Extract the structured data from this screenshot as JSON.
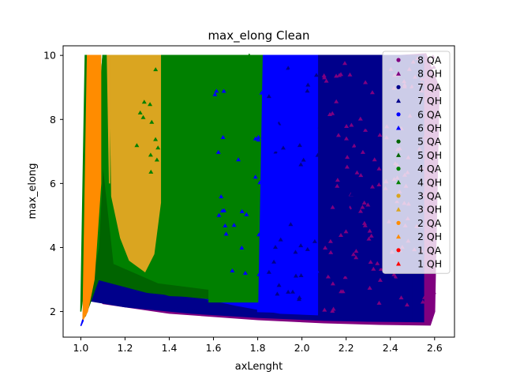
{
  "chart_data": {
    "type": "scatter",
    "title": "max_elong Clean",
    "xlabel": "axLenght",
    "ylabel": "max_elong",
    "xlim": [
      0.92,
      2.69
    ],
    "ylim": [
      1.2,
      10.3
    ],
    "xticks": [
      "1.0",
      "1.2",
      "1.4",
      "1.6",
      "1.8",
      "2.0",
      "2.2",
      "2.4",
      "2.6"
    ],
    "yticks": [
      "2",
      "4",
      "6",
      "8",
      "10"
    ],
    "grid": false,
    "legend_position": "upper-right",
    "series": [
      {
        "name": "8 QA",
        "marker": "circle",
        "color": "#800080",
        "region": [
          [
            1.02,
            1.95
          ],
          [
            1.04,
            2.75
          ],
          [
            1.1,
            2.25
          ],
          [
            1.4,
            1.95
          ],
          [
            1.8,
            1.75
          ],
          [
            2.1,
            1.65
          ],
          [
            2.35,
            1.6
          ],
          [
            2.58,
            1.58
          ],
          [
            2.6,
            2.0
          ],
          [
            2.6,
            9.0
          ],
          [
            2.56,
            10.0
          ],
          [
            2.45,
            10.0
          ],
          [
            2.45,
            2.5
          ],
          [
            2.0,
            2.4
          ],
          [
            1.5,
            2.3
          ],
          [
            1.1,
            2.6
          ],
          [
            1.05,
            3.0
          ]
        ]
      },
      {
        "name": "8 QH",
        "marker": "triangle",
        "color": "#800080",
        "region": [
          [
            2.5,
            1.9
          ],
          [
            2.6,
            2.1
          ],
          [
            2.62,
            9.0
          ],
          [
            2.56,
            10.05
          ],
          [
            2.45,
            10.0
          ]
        ]
      },
      {
        "name": "7 QA",
        "marker": "circle",
        "color": "#00008b",
        "region": [
          [
            1.03,
            2.35
          ],
          [
            1.2,
            2.15
          ],
          [
            1.5,
            1.95
          ],
          [
            1.8,
            1.82
          ],
          [
            2.1,
            1.73
          ],
          [
            2.3,
            1.7
          ],
          [
            2.55,
            1.68
          ],
          [
            2.55,
            10.0
          ],
          [
            2.1,
            10.0
          ],
          [
            2.1,
            2.3
          ],
          [
            1.8,
            2.3
          ],
          [
            1.4,
            2.4
          ],
          [
            1.1,
            2.6
          ],
          [
            1.05,
            3.2
          ]
        ]
      },
      {
        "name": "7 QH",
        "marker": "triangle",
        "color": "#00008b",
        "region": [
          [
            1.02,
            2.5
          ],
          [
            1.25,
            2.25
          ],
          [
            1.6,
            2.0
          ],
          [
            1.9,
            1.85
          ],
          [
            2.3,
            1.75
          ],
          [
            2.5,
            1.72
          ],
          [
            2.5,
            10.0
          ],
          [
            2.0,
            10.0
          ]
        ]
      },
      {
        "name": "6 QA",
        "marker": "circle",
        "color": "#0000ff",
        "region": [
          [
            1.0,
            1.55
          ],
          [
            1.01,
            1.7
          ],
          [
            1.04,
            3.75
          ],
          [
            1.1,
            3.3
          ],
          [
            1.4,
            2.65
          ],
          [
            1.7,
            2.2
          ],
          [
            1.9,
            1.95
          ],
          [
            2.07,
            1.9
          ],
          [
            2.07,
            10.0
          ],
          [
            1.6,
            10.0
          ],
          [
            1.6,
            2.6
          ],
          [
            1.3,
            2.9
          ],
          [
            1.1,
            3.8
          ]
        ]
      },
      {
        "name": "6 QH",
        "marker": "triangle",
        "color": "#0000ff",
        "region": [
          [
            1.8,
            2.0
          ],
          [
            2.07,
            1.95
          ],
          [
            2.07,
            10.0
          ],
          [
            1.8,
            10.0
          ]
        ]
      },
      {
        "name": "5 QA",
        "marker": "circle",
        "color": "#006400",
        "region": [
          [
            1.01,
            1.8
          ],
          [
            1.06,
            3.3
          ],
          [
            1.25,
            2.8
          ],
          [
            1.4,
            2.5
          ],
          [
            1.58,
            2.45
          ],
          [
            1.58,
            10.0
          ],
          [
            1.35,
            10.0
          ],
          [
            1.35,
            3.0
          ],
          [
            1.2,
            3.1
          ],
          [
            1.08,
            4.0
          ]
        ]
      },
      {
        "name": "5 QH",
        "marker": "triangle",
        "color": "#006400",
        "region": [
          [
            1.02,
            1.85
          ],
          [
            1.08,
            3.0
          ],
          [
            1.3,
            2.6
          ],
          [
            1.58,
            2.4
          ],
          [
            1.58,
            10.0
          ],
          [
            1.1,
            10.0
          ]
        ]
      },
      {
        "name": "4 QA",
        "marker": "circle",
        "color": "#008000",
        "region": [
          [
            1.01,
            1.8
          ],
          [
            1.08,
            4.0
          ],
          [
            1.1,
            6.7
          ],
          [
            1.15,
            3.5
          ],
          [
            1.35,
            2.9
          ],
          [
            1.58,
            2.7
          ],
          [
            1.58,
            2.3
          ],
          [
            1.8,
            2.3
          ],
          [
            1.82,
            10.0
          ],
          [
            1.1,
            10.0
          ]
        ]
      },
      {
        "name": "4 QH",
        "marker": "triangle",
        "color": "#008000",
        "region": [
          [
            1.0,
            2.0
          ],
          [
            1.02,
            10.0
          ],
          [
            1.03,
            10.0
          ],
          [
            1.02,
            3.0
          ]
        ]
      },
      {
        "name": "3 QA",
        "marker": "circle",
        "color": "#daa520",
        "region": [
          [
            1.13,
            10.0
          ],
          [
            1.36,
            10.0
          ],
          [
            1.36,
            5.4
          ],
          [
            1.33,
            3.8
          ],
          [
            1.29,
            3.25
          ],
          [
            1.22,
            3.6
          ],
          [
            1.18,
            4.3
          ],
          [
            1.14,
            5.6
          ]
        ]
      },
      {
        "name": "3 QH",
        "marker": "triangle",
        "color": "#daa520",
        "region": [
          [
            1.12,
            10.0
          ],
          [
            1.13,
            10.0
          ],
          [
            1.13,
            6.0
          ]
        ]
      },
      {
        "name": "2 QA",
        "marker": "circle",
        "color": "#ff8c00",
        "region": [
          [
            1.01,
            1.75
          ],
          [
            1.03,
            10.0
          ],
          [
            1.09,
            10.0
          ],
          [
            1.09,
            6.0
          ],
          [
            1.06,
            3.0
          ],
          [
            1.03,
            2.0
          ]
        ]
      },
      {
        "name": "2 QH",
        "marker": "triangle",
        "color": "#ff8c00",
        "region": [
          [
            1.02,
            2.0
          ],
          [
            1.04,
            10.0
          ],
          [
            1.06,
            10.0
          ],
          [
            1.04,
            3.0
          ]
        ]
      },
      {
        "name": "1 QA",
        "marker": "circle",
        "color": "#ff0000",
        "region": []
      },
      {
        "name": "1 QH",
        "marker": "triangle",
        "color": "#ff0000",
        "region": []
      }
    ]
  }
}
